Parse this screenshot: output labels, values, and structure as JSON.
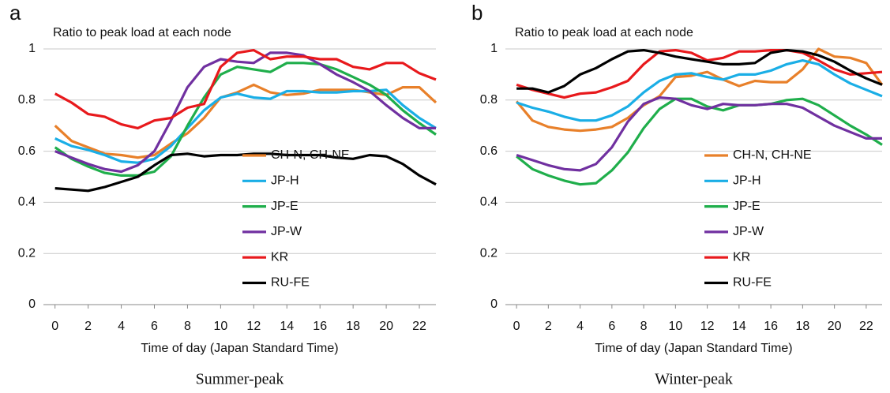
{
  "chart_data": [
    {
      "type": "line",
      "panel": "a",
      "annotation": "Ratio to peak load at each node",
      "xlabel": "Time of day (Japan Standard Time)",
      "caption": "Summer-peak",
      "x": [
        0,
        1,
        2,
        3,
        4,
        5,
        6,
        7,
        8,
        9,
        10,
        11,
        12,
        13,
        14,
        15,
        16,
        17,
        18,
        19,
        20,
        21,
        22,
        23
      ],
      "xlim": [
        -0.7,
        23.0
      ],
      "ylim": [
        0,
        1.0
      ],
      "xticks": [
        0,
        2,
        4,
        6,
        8,
        10,
        12,
        14,
        16,
        18,
        20,
        22
      ],
      "yticks": [
        0,
        0.2,
        0.4,
        0.6,
        0.8,
        1
      ],
      "grid": true,
      "series": [
        {
          "name": "CH-N, CH-NE",
          "color": "#e8802a",
          "values": [
            0.7,
            0.64,
            0.615,
            0.59,
            0.585,
            0.575,
            0.585,
            0.63,
            0.67,
            0.73,
            0.81,
            0.83,
            0.86,
            0.83,
            0.82,
            0.825,
            0.84,
            0.84,
            0.84,
            0.83,
            0.82,
            0.85,
            0.85,
            0.79
          ]
        },
        {
          "name": "JP-H",
          "color": "#1aaee6",
          "values": [
            0.65,
            0.62,
            0.605,
            0.585,
            0.56,
            0.555,
            0.57,
            0.62,
            0.69,
            0.76,
            0.81,
            0.825,
            0.81,
            0.805,
            0.835,
            0.835,
            0.83,
            0.83,
            0.835,
            0.835,
            0.84,
            0.78,
            0.73,
            0.69
          ]
        },
        {
          "name": "JP-E",
          "color": "#1fae4b",
          "values": [
            0.615,
            0.57,
            0.54,
            0.515,
            0.505,
            0.505,
            0.52,
            0.58,
            0.7,
            0.81,
            0.9,
            0.93,
            0.92,
            0.91,
            0.945,
            0.945,
            0.94,
            0.92,
            0.89,
            0.86,
            0.82,
            0.76,
            0.71,
            0.665
          ]
        },
        {
          "name": "JP-W",
          "color": "#7030a0",
          "values": [
            0.6,
            0.575,
            0.55,
            0.53,
            0.52,
            0.545,
            0.6,
            0.72,
            0.85,
            0.93,
            0.96,
            0.95,
            0.945,
            0.985,
            0.985,
            0.975,
            0.94,
            0.9,
            0.87,
            0.835,
            0.78,
            0.73,
            0.69,
            0.69
          ]
        },
        {
          "name": "KR",
          "color": "#e8191c",
          "values": [
            0.825,
            0.79,
            0.745,
            0.735,
            0.705,
            0.69,
            0.72,
            0.73,
            0.77,
            0.785,
            0.93,
            0.985,
            0.995,
            0.96,
            0.97,
            0.97,
            0.96,
            0.96,
            0.93,
            0.92,
            0.945,
            0.945,
            0.905,
            0.88
          ]
        },
        {
          "name": "RU-FE",
          "color": "#000000",
          "values": [
            0.455,
            0.45,
            0.445,
            0.46,
            0.48,
            0.5,
            0.545,
            0.585,
            0.59,
            0.58,
            0.585,
            0.585,
            0.59,
            0.59,
            0.585,
            0.585,
            0.585,
            0.575,
            0.57,
            0.585,
            0.58,
            0.55,
            0.505,
            0.47
          ]
        }
      ]
    },
    {
      "type": "line",
      "panel": "b",
      "annotation": "Ratio to peak load at each node",
      "xlabel": "Time of day (Japan Standard Time)",
      "caption": "Winter-peak",
      "x": [
        0,
        1,
        2,
        3,
        4,
        5,
        6,
        7,
        8,
        9,
        10,
        11,
        12,
        13,
        14,
        15,
        16,
        17,
        18,
        19,
        20,
        21,
        22,
        23
      ],
      "xlim": [
        -0.7,
        23.0
      ],
      "ylim": [
        0,
        1.0
      ],
      "xticks": [
        0,
        2,
        4,
        6,
        8,
        10,
        12,
        14,
        16,
        18,
        20,
        22
      ],
      "yticks": [
        0,
        0.2,
        0.4,
        0.6,
        0.8,
        1
      ],
      "grid": true,
      "series": [
        {
          "name": "CH-N, CH-NE",
          "color": "#e8802a",
          "values": [
            0.795,
            0.72,
            0.695,
            0.685,
            0.68,
            0.685,
            0.695,
            0.73,
            0.78,
            0.815,
            0.89,
            0.895,
            0.91,
            0.88,
            0.855,
            0.875,
            0.87,
            0.87,
            0.92,
            1.0,
            0.97,
            0.965,
            0.945,
            0.86
          ]
        },
        {
          "name": "JP-H",
          "color": "#1aaee6",
          "values": [
            0.79,
            0.77,
            0.755,
            0.735,
            0.72,
            0.72,
            0.74,
            0.775,
            0.83,
            0.875,
            0.9,
            0.905,
            0.89,
            0.88,
            0.9,
            0.9,
            0.915,
            0.94,
            0.955,
            0.94,
            0.9,
            0.865,
            0.84,
            0.815
          ]
        },
        {
          "name": "JP-E",
          "color": "#1fae4b",
          "values": [
            0.58,
            0.53,
            0.505,
            0.485,
            0.47,
            0.475,
            0.525,
            0.595,
            0.69,
            0.765,
            0.805,
            0.805,
            0.775,
            0.76,
            0.78,
            0.78,
            0.785,
            0.8,
            0.805,
            0.78,
            0.74,
            0.7,
            0.665,
            0.625
          ]
        },
        {
          "name": "JP-W",
          "color": "#7030a0",
          "values": [
            0.585,
            0.565,
            0.545,
            0.53,
            0.525,
            0.55,
            0.615,
            0.715,
            0.785,
            0.81,
            0.805,
            0.78,
            0.765,
            0.785,
            0.78,
            0.78,
            0.785,
            0.785,
            0.77,
            0.735,
            0.7,
            0.675,
            0.65,
            0.65
          ]
        },
        {
          "name": "KR",
          "color": "#e8191c",
          "values": [
            0.86,
            0.84,
            0.825,
            0.81,
            0.825,
            0.83,
            0.85,
            0.875,
            0.94,
            0.99,
            0.995,
            0.985,
            0.955,
            0.965,
            0.99,
            0.99,
            0.995,
            0.995,
            0.985,
            0.955,
            0.92,
            0.9,
            0.905,
            0.91
          ]
        },
        {
          "name": "RU-FE",
          "color": "#000000",
          "values": [
            0.845,
            0.845,
            0.83,
            0.855,
            0.9,
            0.925,
            0.96,
            0.99,
            0.995,
            0.985,
            0.97,
            0.96,
            0.95,
            0.94,
            0.94,
            0.945,
            0.985,
            0.995,
            0.99,
            0.975,
            0.95,
            0.915,
            0.885,
            0.86
          ]
        }
      ]
    }
  ]
}
